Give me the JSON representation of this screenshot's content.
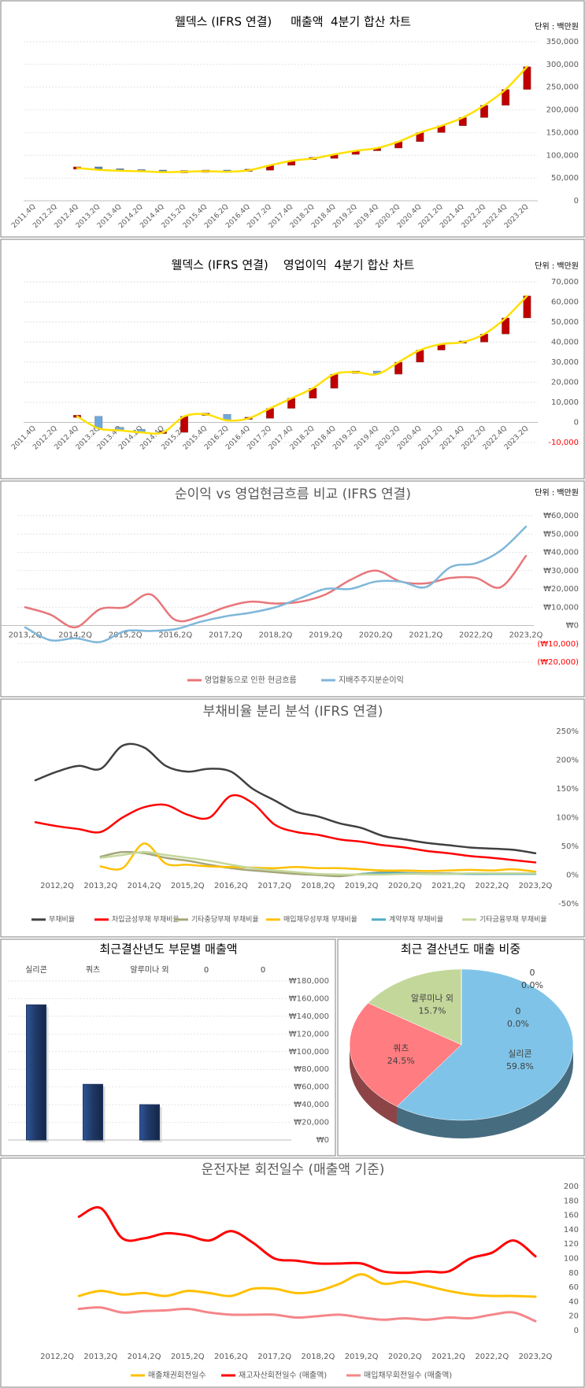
{
  "chart_data": [
    {
      "type": "waterfall",
      "title": "웰덱스 (IFRS 연결)     매출액  4분기 합산 차트",
      "unit": "단위 : 백만원",
      "categories": [
        "2011.4Q",
        "2012.2Q",
        "2012.4Q",
        "2013.2Q",
        "2013.4Q",
        "2014.2Q",
        "2014.4Q",
        "2015.2Q",
        "2015.4Q",
        "2016.2Q",
        "2016.4Q",
        "2017.2Q",
        "2017.4Q",
        "2018.2Q",
        "2018.4Q",
        "2019.2Q",
        "2019.4Q",
        "2020.2Q",
        "2020.4Q",
        "2021.2Q",
        "2021.4Q",
        "2022.2Q",
        "2022.4Q",
        "2023.2Q"
      ],
      "values": [
        null,
        null,
        72000,
        68000,
        66000,
        65000,
        63000,
        64000,
        65000,
        64000,
        67000,
        78000,
        88000,
        93000,
        102000,
        110000,
        116000,
        130000,
        150000,
        165000,
        183000,
        210000,
        245000,
        295000
      ],
      "color": "#ffe000",
      "up_color": "#c00000",
      "down_color": "#4f81bd",
      "ylim": [
        0,
        350000
      ],
      "yticks": [
        0,
        {
          "value": 50000,
          "label": "50,000"
        },
        {
          "value": 100000,
          "label": "100,000"
        },
        {
          "value": 150000,
          "label": "150,000"
        },
        {
          "value": 200000,
          "label": "200,000"
        },
        {
          "value": 250000,
          "label": "250,000"
        },
        {
          "value": 300000,
          "label": "300,000"
        },
        {
          "value": 350000,
          "label": "350,000"
        }
      ],
      "grid": true
    },
    {
      "type": "waterfall",
      "title": "웰덱스 (IFRS 연결)    영업이익  4분기 합산 차트",
      "unit": "단위 : 백만원",
      "categories": [
        "2011.4Q",
        "2012.2Q",
        "2012.4Q",
        "2013.2Q",
        "2013.4Q",
        "2014.2Q",
        "2014.4Q",
        "2015.2Q",
        "2015.4Q",
        "2016.2Q",
        "2016.4Q",
        "2017.2Q",
        "2017.4Q",
        "2018.2Q",
        "2018.4Q",
        "2019.2Q",
        "2019.4Q",
        "2020.2Q",
        "2020.4Q",
        "2021.2Q",
        "2021.4Q",
        "2022.2Q",
        "2022.4Q",
        "2023.2Q"
      ],
      "values": [
        null,
        null,
        3000,
        -3000,
        -4000,
        -5000,
        -5000,
        3000,
        4000,
        1000,
        2000,
        7000,
        12000,
        17000,
        24000,
        25000,
        24000,
        30000,
        36000,
        39000,
        40000,
        44000,
        52000,
        63000
      ],
      "color": "#ffe000",
      "up_color": "#c00000",
      "down_color": "#6fa8dc",
      "ylim": [
        -10000,
        70000
      ],
      "yticks": [
        {
          "value": -10000,
          "label": "-10,000"
        },
        0,
        {
          "value": 10000,
          "label": "10,000"
        },
        {
          "value": 20000,
          "label": "20,000"
        },
        {
          "value": 30000,
          "label": "30,000"
        },
        {
          "value": 40000,
          "label": "40,000"
        },
        {
          "value": 50000,
          "label": "50,000"
        },
        {
          "value": 60000,
          "label": "60,000"
        },
        {
          "value": 70000,
          "label": "70,000"
        }
      ],
      "negative_tick_color": "#ff0000",
      "grid": true
    },
    {
      "type": "line",
      "title": "순이익 vs 영업현금흐름 비교 (IFRS 연결)",
      "unit": "단위 : 백만원",
      "categories": [
        "2013,2Q",
        null,
        "2014,2Q",
        null,
        "2015,2Q",
        null,
        "2016,2Q",
        null,
        "2017,2Q",
        null,
        "2018,2Q",
        null,
        "2019,2Q",
        null,
        "2020,2Q",
        null,
        "2021,2Q",
        null,
        "2022,2Q",
        null,
        "2023,2Q"
      ],
      "series": [
        {
          "name": "영업활동으로 인한 현금흐름",
          "color": "#e8767a",
          "values": [
            10000,
            6000,
            -1000,
            9000,
            10000,
            17000,
            3000,
            5000,
            10000,
            13000,
            12000,
            13000,
            17000,
            25000,
            30000,
            24000,
            23000,
            26000,
            26000,
            21000,
            38000
          ]
        },
        {
          "name": "지배주주지분순이익",
          "color": "#7fb7d9",
          "values": [
            -1000,
            -8000,
            -7000,
            -9000,
            -3000,
            -3000,
            -2000,
            2000,
            5000,
            7000,
            10000,
            15000,
            20000,
            20000,
            24000,
            24000,
            21000,
            32000,
            34000,
            41000,
            54000
          ]
        }
      ],
      "ylim": [
        -20000,
        60000
      ],
      "yticks": [
        {
          "value": -20000,
          "label": "(₩20,000)"
        },
        {
          "value": -10000,
          "label": "(₩10,000)"
        },
        {
          "value": 0,
          "label": "₩0"
        },
        {
          "value": 10000,
          "label": "₩10,000"
        },
        {
          "value": 20000,
          "label": "₩20,000"
        },
        {
          "value": 30000,
          "label": "₩30,000"
        },
        {
          "value": 40000,
          "label": "₩40,000"
        },
        {
          "value": 50000,
          "label": "₩50,000"
        },
        {
          "value": 60000,
          "label": "₩60,000"
        }
      ],
      "negative_tick_color": "#ff0000",
      "grid": true,
      "legend": "bottom"
    },
    {
      "type": "line",
      "title": "부채비율 분리 분석 (IFRS 연결)",
      "categories": [
        null,
        "2012,2Q",
        null,
        "2013,2Q",
        null,
        "2014,2Q",
        null,
        "2015,2Q",
        null,
        "2016,2Q",
        null,
        "2017,2Q",
        null,
        "2018,2Q",
        null,
        "2019,2Q",
        null,
        "2020,2Q",
        null,
        "2021,2Q",
        null,
        "2022,2Q",
        null,
        "2023,2Q"
      ],
      "series": [
        {
          "name": "부채비율",
          "color": "#404040",
          "values": [
            165,
            180,
            190,
            185,
            225,
            222,
            190,
            180,
            185,
            180,
            150,
            130,
            110,
            102,
            90,
            82,
            68,
            62,
            56,
            52,
            48,
            46,
            44,
            38
          ]
        },
        {
          "name": "차입금성부채 부채비율",
          "color": "#ff0000",
          "values": [
            92,
            85,
            80,
            75,
            100,
            118,
            122,
            105,
            100,
            138,
            125,
            88,
            75,
            70,
            62,
            58,
            52,
            48,
            42,
            38,
            33,
            30,
            26,
            22
          ]
        },
        {
          "name": "기타충당부채 부채비율",
          "color": "#a5a57a",
          "values": [
            null,
            null,
            null,
            32,
            40,
            38,
            30,
            25,
            18,
            12,
            8,
            5,
            2,
            0,
            -2,
            2,
            5,
            4,
            3,
            3,
            2,
            2,
            2,
            2
          ]
        },
        {
          "name": "매입채무성부채 부채비율",
          "color": "#ffc000",
          "values": [
            null,
            null,
            null,
            15,
            12,
            55,
            20,
            18,
            15,
            14,
            13,
            12,
            14,
            12,
            12,
            10,
            8,
            8,
            7,
            8,
            9,
            8,
            10,
            6
          ]
        },
        {
          "name": "계약부채 부채비율",
          "color": "#4bacc6",
          "values": [
            null,
            null,
            null,
            null,
            null,
            null,
            null,
            null,
            null,
            null,
            null,
            null,
            null,
            null,
            null,
            2,
            3,
            3,
            2,
            2,
            2,
            2,
            2,
            2
          ]
        },
        {
          "name": "기타금융부채 부채비율",
          "color": "#c4d79b",
          "values": [
            null,
            null,
            null,
            30,
            35,
            40,
            35,
            30,
            25,
            18,
            12,
            8,
            5,
            2,
            1,
            1,
            1,
            2,
            2,
            2,
            3,
            3,
            3,
            3
          ]
        }
      ],
      "ylim": [
        -50,
        250
      ],
      "yticks": [
        {
          "value": -50,
          "label": "-50%"
        },
        {
          "value": 0,
          "label": "0%"
        },
        {
          "value": 50,
          "label": "50%"
        },
        {
          "value": 100,
          "label": "100%"
        },
        {
          "value": 150,
          "label": "150%"
        },
        {
          "value": 200,
          "label": "200%"
        },
        {
          "value": 250,
          "label": "250%"
        }
      ],
      "grid": false,
      "legend": "bottom"
    },
    {
      "type": "bar",
      "title": "최근결산년도 부문별 매출액",
      "categories": [
        "실리콘",
        "쿼츠",
        "알루미나 외",
        "0",
        "0"
      ],
      "values": [
        153000,
        63000,
        40000,
        0,
        0
      ],
      "color": "#1f3864",
      "ylim": [
        0,
        180000
      ],
      "yticks": [
        {
          "value": 0,
          "label": "₩0"
        },
        {
          "value": 20000,
          "label": "₩20,000"
        },
        {
          "value": 40000,
          "label": "₩40,000"
        },
        {
          "value": 60000,
          "label": "₩60,000"
        },
        {
          "value": 80000,
          "label": "₩80,000"
        },
        {
          "value": 100000,
          "label": "₩100,000"
        },
        {
          "value": 120000,
          "label": "₩120,000"
        },
        {
          "value": 140000,
          "label": "₩140,000"
        },
        {
          "value": 160000,
          "label": "₩160,000"
        },
        {
          "value": 180000,
          "label": "₩180,000"
        }
      ],
      "grid": true
    },
    {
      "type": "pie",
      "title": "최근 결산년도 매출 비중",
      "categories": [
        "실리콘",
        "쿼츠",
        "알루미나 외",
        "0",
        "0"
      ],
      "values": [
        59.8,
        24.5,
        15.7,
        0,
        0
      ],
      "value_labels": [
        "59.8%",
        "24.5%",
        "15.7%",
        "0.0%",
        "0.0%"
      ],
      "colors": [
        "#7fc4e8",
        "#ff7c80",
        "#c4d79b",
        "#8064a2",
        "#f79646"
      ]
    },
    {
      "type": "line",
      "title": "운전자본 회전일수 (매출액 기준)",
      "categories": [
        null,
        "2012,2Q",
        null,
        "2013,2Q",
        null,
        "2014,2Q",
        null,
        "2015,2Q",
        null,
        "2016,2Q",
        null,
        "2017,2Q",
        null,
        "2018,2Q",
        null,
        "2019,2Q",
        null,
        "2020,2Q",
        null,
        "2021,2Q",
        null,
        "2022,2Q",
        null,
        "2023,2Q"
      ],
      "series": [
        {
          "name": "매출채권회전일수",
          "color": "#ffc000",
          "values": [
            null,
            null,
            48,
            55,
            50,
            52,
            48,
            55,
            52,
            48,
            58,
            58,
            52,
            55,
            65,
            78,
            65,
            68,
            62,
            55,
            50,
            48,
            48,
            47
          ]
        },
        {
          "name": "재고자산회전일수 (매출액)",
          "color": "#ff0000",
          "values": [
            null,
            null,
            158,
            170,
            128,
            128,
            135,
            132,
            125,
            138,
            122,
            100,
            97,
            93,
            93,
            93,
            82,
            80,
            82,
            82,
            100,
            108,
            125,
            103
          ]
        },
        {
          "name": "매입채무회전일수 (매출액)",
          "color": "#f4868a",
          "values": [
            null,
            null,
            30,
            32,
            25,
            27,
            28,
            30,
            25,
            22,
            22,
            22,
            18,
            20,
            22,
            18,
            15,
            17,
            15,
            18,
            17,
            22,
            25,
            13
          ]
        }
      ],
      "ylim": [
        0,
        200
      ],
      "yticks": [
        0,
        20,
        40,
        60,
        80,
        100,
        120,
        140,
        160,
        180,
        200
      ],
      "grid": false,
      "legend": "bottom"
    }
  ]
}
